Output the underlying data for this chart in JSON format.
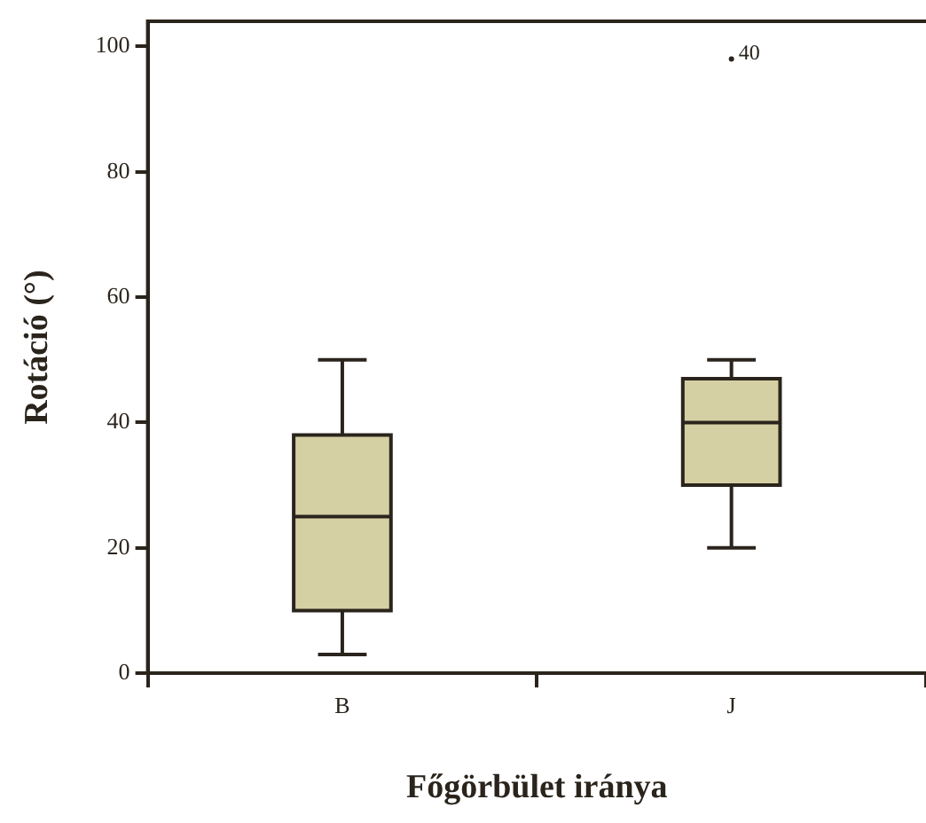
{
  "chart_data": {
    "type": "box",
    "xlabel": "Főgörbület iránya",
    "ylabel": "Rotáció (°)",
    "categories": [
      "B",
      "J"
    ],
    "color": "#d4d0a4",
    "ylim": [
      0,
      104
    ],
    "yticks": [
      0,
      20,
      40,
      60,
      80,
      100
    ],
    "grid": false,
    "legend": false,
    "boxes": [
      {
        "low": 3,
        "q1": 10,
        "median": 25,
        "q3": 38,
        "high": 50
      },
      {
        "low": 20,
        "q1": 30,
        "median": 40,
        "q3": 47,
        "high": 50,
        "outliers": [
          98
        ]
      }
    ],
    "annotations": [
      "40"
    ]
  }
}
